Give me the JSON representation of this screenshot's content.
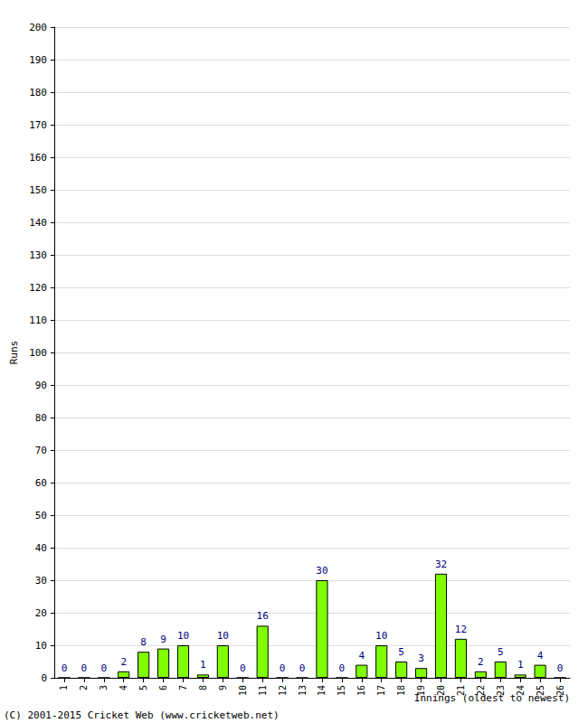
{
  "chart_data": {
    "type": "bar",
    "x_label": "Innings (oldest to newest)",
    "y_label": "Runs",
    "annotations": [
      "(C) 2001-2015 Cricket Web (www.cricketweb.net)"
    ],
    "categories": [
      "1",
      "2",
      "3",
      "4",
      "5",
      "6",
      "7",
      "8",
      "9",
      "10",
      "11",
      "12",
      "13",
      "14",
      "15",
      "16",
      "17",
      "18",
      "19",
      "20",
      "21",
      "22",
      "23",
      "24",
      "25",
      "26"
    ],
    "values": [
      0,
      0,
      0,
      2,
      8,
      9,
      10,
      1,
      10,
      0,
      16,
      0,
      0,
      30,
      0,
      4,
      10,
      5,
      3,
      32,
      12,
      2,
      5,
      1,
      4,
      0
    ],
    "color": "#80ff00",
    "ylim": [
      0,
      200
    ],
    "yticks": [
      0,
      10,
      20,
      30,
      40,
      50,
      60,
      70,
      80,
      90,
      100,
      110,
      120,
      130,
      140,
      150,
      160,
      170,
      180,
      190,
      200
    ],
    "grid": true,
    "data_labels": true
  }
}
